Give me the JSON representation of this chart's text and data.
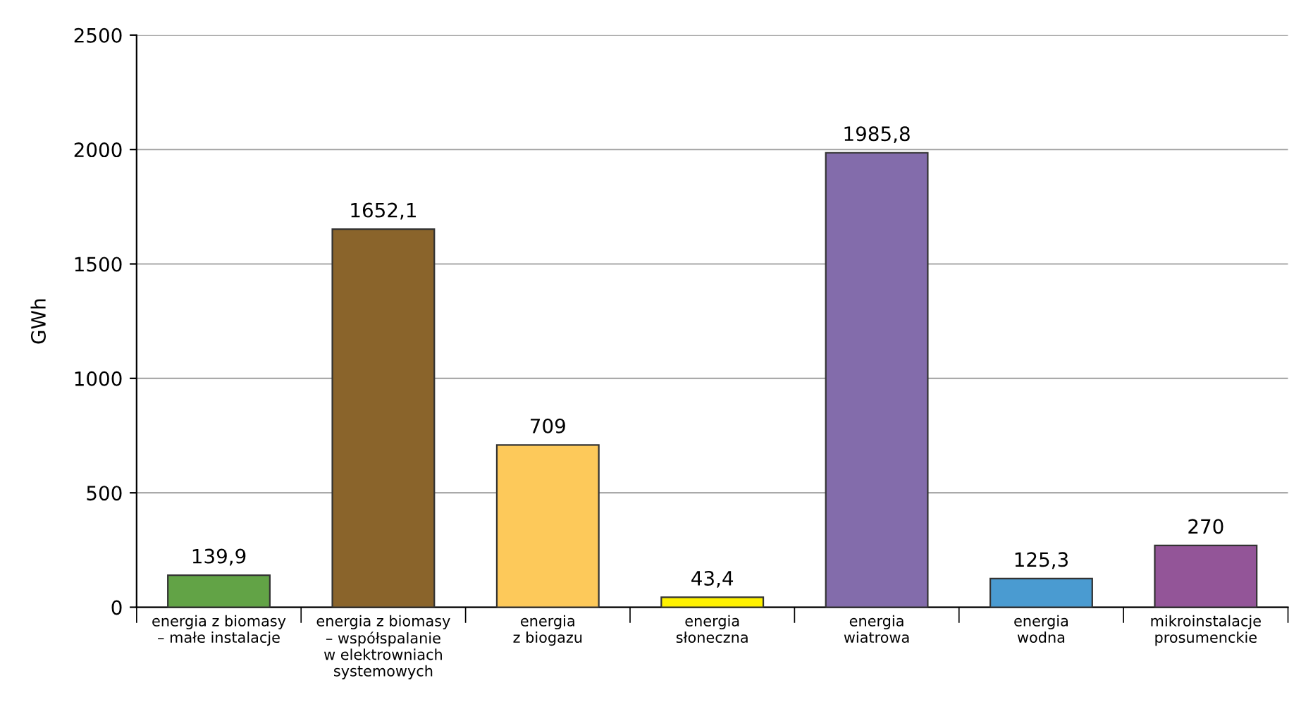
{
  "chart_data": {
    "type": "bar",
    "ylabel": "GWh",
    "categories": [
      "energia z biomasy\n– małe instalacje",
      "energia z biomasy\n– współspalanie\nw elektrowniach\nsystemowych",
      "energia\nz biogazu",
      "energia\nsłoneczna",
      "energia\nwiatrowa",
      "energia\nwodna",
      "mikroinstalacje\nprosumenckie"
    ],
    "values": [
      139.9,
      1652.1,
      709,
      43.4,
      1985.8,
      125.3,
      270
    ],
    "value_labels": [
      "139,9",
      "1652,1",
      "709",
      "43,4",
      "1985,8",
      "125,3",
      "270"
    ],
    "colors": [
      "#62a346",
      "#8a642b",
      "#fdc95a",
      "#fff200",
      "#836cab",
      "#4a9bd1",
      "#935598"
    ],
    "ylim": [
      0,
      2500
    ],
    "yticks": [
      0,
      500,
      1000,
      1500,
      2000,
      2500
    ],
    "grid": "y"
  }
}
